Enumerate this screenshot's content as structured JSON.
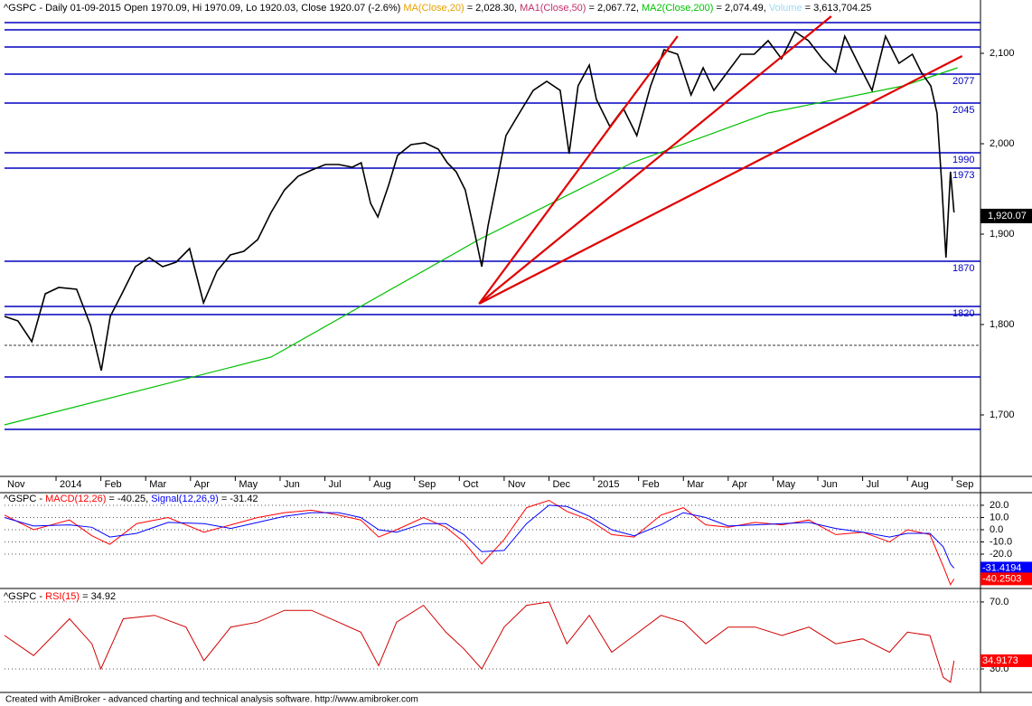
{
  "chart_data": [
    {
      "type": "line",
      "header": [
        {
          "text": "^GSPC - Daily 01-09-2015 Open 1970.09, Hi 1970.09, Lo 1920.03, Close 1920.07 (-2.6%) ",
          "color": "#000000"
        },
        {
          "text": "MA(Close,20)",
          "color": "#e8a000"
        },
        {
          "text": " = 2,028.30, ",
          "color": "#000000"
        },
        {
          "text": "MA1(Close,50)",
          "color": "#c0306a"
        },
        {
          "text": " = 2,067.72, ",
          "color": "#000000"
        },
        {
          "text": "MA2(Close,200)",
          "color": "#00c000"
        },
        {
          "text": " = 2,074.49, ",
          "color": "#000000"
        },
        {
          "text": "Volume",
          "color": "#9fd8ef"
        },
        {
          "text": " = 3,613,704.25",
          "color": "#000000"
        }
      ],
      "x": [
        -1.15,
        -0.85,
        -0.54,
        -0.24,
        0.06,
        0.46,
        0.77,
        1.01,
        1.21,
        1.47,
        1.77,
        2.08,
        2.38,
        2.68,
        2.98,
        3.29,
        3.59,
        3.89,
        4.19,
        4.5,
        4.8,
        5.1,
        5.4,
        5.71,
        6.01,
        6.31,
        6.61,
        6.81,
        7.02,
        7.18,
        7.42,
        7.62,
        7.92,
        8.23,
        8.53,
        8.73,
        8.93,
        9.13,
        9.33,
        9.5,
        9.64,
        9.84,
        10.04,
        10.34,
        10.65,
        10.95,
        11.25,
        11.45,
        11.65,
        11.9,
        12.06,
        12.36,
        12.66,
        12.96,
        13.27,
        13.57,
        13.87,
        14.17,
        14.44,
        14.68,
        14.98,
        15.28,
        15.58,
        15.89,
        16.19,
        16.49,
        16.79,
        17.1,
        17.4,
        17.6,
        17.9,
        18.21,
        18.51,
        18.81,
        19.11,
        19.31,
        19.52,
        19.66,
        19.76,
        19.86,
        19.96,
        20.04
      ],
      "series": [
        {
          "color": "#000000",
          "values": [
            1809,
            1804,
            1781,
            1834,
            1841,
            1839,
            1799,
            1749,
            1809,
            1834,
            1864,
            1874,
            1864,
            1869,
            1884,
            1824,
            1859,
            1877,
            1881,
            1894,
            1924,
            1949,
            1964,
            1971,
            1977,
            1977,
            1974,
            1979,
            1934,
            1919,
            1954,
            1987,
            1999,
            2001,
            1994,
            1979,
            1969,
            1949,
            1904,
            1864,
            1909,
            1959,
            2009,
            2034,
            2059,
            2069,
            2059,
            1989,
            2064,
            2087,
            2049,
            2019,
            2039,
            2009,
            2064,
            2104,
            2099,
            2054,
            2084,
            2059,
            2079,
            2099,
            2099,
            2114,
            2094,
            2124,
            2114,
            2094,
            2079,
            2119,
            2089,
            2059,
            2119,
            2089,
            2099,
            2079,
            2064,
            2034,
            1959,
            1874,
            1969,
            1924
          ]
        }
      ],
      "ma200": {
        "color": "#00c000",
        "x": [
          -1.15,
          4.8,
          9.44,
          12.86,
          15.89,
          18.91,
          20.12
        ],
        "values": [
          1689,
          1764,
          1894,
          1979,
          2034,
          2064,
          2084
        ]
      },
      "trendlines": [
        {
          "x": [
            9.44,
            13.87
          ],
          "y": [
            1823,
            2119
          ]
        },
        {
          "x": [
            9.44,
            17.3
          ],
          "y": [
            1823,
            2141
          ]
        },
        {
          "x": [
            9.44,
            20.22
          ],
          "y": [
            1823,
            2097
          ]
        }
      ],
      "trend_color": "#e00000",
      "levels": [
        2077,
        2045,
        1990,
        1973,
        1870,
        1820
      ],
      "other_levels": [
        2134,
        2126,
        2107,
        1811,
        1742,
        1684
      ],
      "dashed_level": 1777,
      "level_color": "#0000c0",
      "last_label": {
        "value": 1920.07,
        "label": "1,920.07"
      },
      "xlim": [
        -1.15,
        20.63
      ],
      "ylim": [
        1632,
        2159
      ],
      "yticks": [
        {
          "value": 2100,
          "label": "2,100"
        },
        {
          "value": 2000,
          "label": "2,000"
        },
        {
          "value": 1900,
          "label": "1,900"
        },
        {
          "value": 1800,
          "label": "1,800"
        },
        {
          "value": 1700,
          "label": "1,700"
        }
      ],
      "xticks": [
        {
          "value": -2,
          "label": "Nov"
        },
        {
          "value": 0,
          "label": "2014"
        },
        {
          "value": 1,
          "label": "Feb"
        },
        {
          "value": 2,
          "label": "Mar"
        },
        {
          "value": 3,
          "label": "Apr"
        },
        {
          "value": 4,
          "label": "May"
        },
        {
          "value": 5,
          "label": "Jun"
        },
        {
          "value": 6,
          "label": "Jul"
        },
        {
          "value": 7,
          "label": "Aug"
        },
        {
          "value": 8,
          "label": "Sep"
        },
        {
          "value": 9,
          "label": "Oct"
        },
        {
          "value": 10,
          "label": "Nov"
        },
        {
          "value": 11,
          "label": "Dec"
        },
        {
          "value": 12,
          "label": "2015"
        },
        {
          "value": 13,
          "label": "Feb"
        },
        {
          "value": 14,
          "label": "Mar"
        },
        {
          "value": 15,
          "label": "Apr"
        },
        {
          "value": 16,
          "label": "May"
        },
        {
          "value": 17,
          "label": "Jun"
        },
        {
          "value": 18,
          "label": "Jul"
        },
        {
          "value": 19,
          "label": "Aug"
        },
        {
          "value": 20,
          "label": "Sep"
        }
      ],
      "grid": false
    },
    {
      "type": "line",
      "header": [
        {
          "text": "^GSPC - ",
          "color": "#000000"
        },
        {
          "text": "MACD(12,26)",
          "color": "#ff0000"
        },
        {
          "text": " = -40.25, ",
          "color": "#000000"
        },
        {
          "text": "Signal(12,26,9)",
          "color": "#0000ff"
        },
        {
          "text": " = -31.42",
          "color": "#000000"
        }
      ],
      "x": [
        -1.15,
        -0.5,
        0.3,
        0.8,
        1.2,
        1.8,
        2.5,
        3.3,
        3.9,
        4.5,
        5.1,
        5.7,
        6.3,
        6.8,
        7.2,
        7.6,
        8.2,
        8.7,
        9.1,
        9.5,
        10.0,
        10.5,
        11.0,
        11.4,
        11.9,
        12.4,
        12.9,
        13.5,
        14.0,
        14.5,
        15.0,
        15.6,
        16.2,
        16.8,
        17.4,
        18.0,
        18.6,
        19.0,
        19.5,
        19.8,
        19.96,
        20.04
      ],
      "series": [
        {
          "color": "#ff0000",
          "values": [
            12,
            0,
            8,
            -5,
            -12,
            5,
            10,
            -2,
            4,
            10,
            14,
            16,
            12,
            8,
            -6,
            0,
            10,
            2,
            -10,
            -28,
            -8,
            18,
            24,
            15,
            8,
            -4,
            -6,
            12,
            18,
            4,
            2,
            6,
            4,
            8,
            -4,
            -2,
            -10,
            0,
            -4,
            -30,
            -45,
            -40.25
          ]
        },
        {
          "color": "#0000ff",
          "values": [
            10,
            3,
            4,
            2,
            -6,
            -3,
            6,
            5,
            1,
            6,
            11,
            14,
            14,
            10,
            0,
            -2,
            5,
            5,
            -4,
            -18,
            -17,
            5,
            20,
            19,
            11,
            0,
            -5,
            4,
            14,
            10,
            3,
            4,
            5,
            6,
            1,
            -2,
            -6,
            -3,
            -3,
            -14,
            -28,
            -31.42
          ]
        }
      ],
      "last_labels": [
        {
          "value": -31.4194,
          "color": "#0000ff"
        },
        {
          "value": -40.2503,
          "color": "#ff0000"
        }
      ],
      "xlim": [
        -1.15,
        20.63
      ],
      "ylim": [
        -45.9,
        28.1
      ],
      "yticks": [
        {
          "value": 20,
          "label": "20.0"
        },
        {
          "value": 10,
          "label": "10.0"
        },
        {
          "value": 0,
          "label": "0.0"
        },
        {
          "value": -10,
          "label": "-10.0"
        },
        {
          "value": -20,
          "label": "-20.0"
        }
      ],
      "grid": true
    },
    {
      "type": "line",
      "header": [
        {
          "text": "^GSPC - ",
          "color": "#000000"
        },
        {
          "text": "RSI(15)",
          "color": "#ff0000"
        },
        {
          "text": " = 34.92",
          "color": "#000000"
        }
      ],
      "x": [
        -1.15,
        -0.5,
        0.3,
        0.8,
        1.0,
        1.5,
        2.2,
        2.9,
        3.3,
        3.9,
        4.5,
        5.1,
        5.7,
        6.3,
        6.8,
        7.2,
        7.6,
        8.2,
        8.7,
        9.1,
        9.5,
        10.0,
        10.5,
        11.0,
        11.4,
        11.9,
        12.4,
        12.9,
        13.5,
        14.0,
        14.5,
        15.0,
        15.6,
        16.2,
        16.8,
        17.4,
        18.0,
        18.6,
        19.0,
        19.5,
        19.8,
        19.96,
        20.04
      ],
      "series": [
        {
          "color": "#d00000",
          "values": [
            50,
            38,
            60,
            45,
            30,
            60,
            62,
            55,
            35,
            55,
            58,
            65,
            65,
            58,
            52,
            32,
            58,
            68,
            52,
            42,
            30,
            55,
            68,
            70,
            45,
            62,
            40,
            50,
            62,
            58,
            45,
            55,
            55,
            50,
            55,
            45,
            48,
            40,
            52,
            50,
            25,
            22,
            34.92
          ]
        }
      ],
      "last_labels": [
        {
          "value": 34.9173,
          "color": "#ff0000"
        }
      ],
      "xlim": [
        -1.15,
        20.63
      ],
      "ylim": [
        17.6,
        75.9
      ],
      "yticks": [
        {
          "value": 70,
          "label": "70.0"
        },
        {
          "value": 30,
          "label": "30.0"
        }
      ],
      "grid": true
    }
  ],
  "footer": "Created with AmiBroker - advanced charting and technical analysis software. http://www.amibroker.com"
}
